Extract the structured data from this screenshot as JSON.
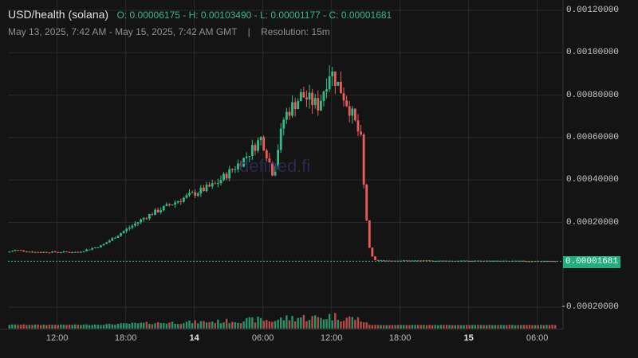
{
  "header": {
    "symbol": "USD/health (solana)",
    "ohlc": "O: 0.00006175 - H: 0.00103490 - L: 0.00001177 - C: 0.00001681",
    "range": "May 13, 2025, 7:42 AM - May 15, 2025, 7:42 AM GMT",
    "separator": "|",
    "resolution": "Resolution: 15m"
  },
  "watermark": "defined.fi",
  "price_label": "0.00001681",
  "colors": {
    "up": "#2ebd85",
    "down": "#ef5b5b",
    "background": "#141414",
    "grid": "#2a2a2a",
    "price_tag": "#1fae7e"
  },
  "chart_data": {
    "type": "candlestick",
    "resolution": "15m",
    "y_ticks": [
      "0.00120000",
      "0.00100000",
      "0.00080000",
      "0.00060000",
      "0.00040000",
      "0.00020000",
      "-0.00020000"
    ],
    "x_ticks": [
      {
        "label": "12:00",
        "bold": false
      },
      {
        "label": "18:00",
        "bold": false
      },
      {
        "label": "14",
        "bold": true
      },
      {
        "label": "06:00",
        "bold": false
      },
      {
        "label": "12:00",
        "bold": false
      },
      {
        "label": "18:00",
        "bold": false
      },
      {
        "label": "15",
        "bold": true
      },
      {
        "label": "06:00",
        "bold": false
      }
    ],
    "ylim": [
      -0.00026,
      0.00122
    ],
    "last_price": 1.681e-05,
    "open": 6.175e-05,
    "high": 0.0010349,
    "low": 1.177e-05,
    "close": 1.681e-05,
    "approx_close_path": [
      {
        "t": "May 13 07:42",
        "close": 5.8e-05
      },
      {
        "t": "May 13 08:30",
        "close": 7e-05
      },
      {
        "t": "May 13 10:00",
        "close": 6e-05
      },
      {
        "t": "May 13 14:00",
        "close": 6e-05
      },
      {
        "t": "May 13 16:00",
        "close": 9e-05
      },
      {
        "t": "May 13 18:00",
        "close": 0.00016
      },
      {
        "t": "May 13 20:00",
        "close": 0.00023
      },
      {
        "t": "May 13 23:00",
        "close": 0.00031
      },
      {
        "t": "May 14 02:00",
        "close": 0.00038
      },
      {
        "t": "May 14 04:30",
        "close": 0.0005
      },
      {
        "t": "May 14 06:00",
        "close": 0.0006
      },
      {
        "t": "May 14 07:00",
        "close": 0.00043
      },
      {
        "t": "May 14 08:00",
        "close": 0.0007
      },
      {
        "t": "May 14 09:30",
        "close": 0.0008
      },
      {
        "t": "May 14 11:00",
        "close": 0.00075
      },
      {
        "t": "May 14 12:00",
        "close": 0.00092
      },
      {
        "t": "May 14 13:00",
        "close": 0.00082
      },
      {
        "t": "May 14 14:00",
        "close": 0.0007
      },
      {
        "t": "May 14 14:45",
        "close": 0.00058
      },
      {
        "t": "May 14 15:00",
        "close": 0.00032
      },
      {
        "t": "May 14 15:30",
        "close": 5e-05
      },
      {
        "t": "May 14 16:00",
        "close": 2e-05
      },
      {
        "t": "May 15 07:42",
        "close": 1.681e-05
      }
    ]
  }
}
